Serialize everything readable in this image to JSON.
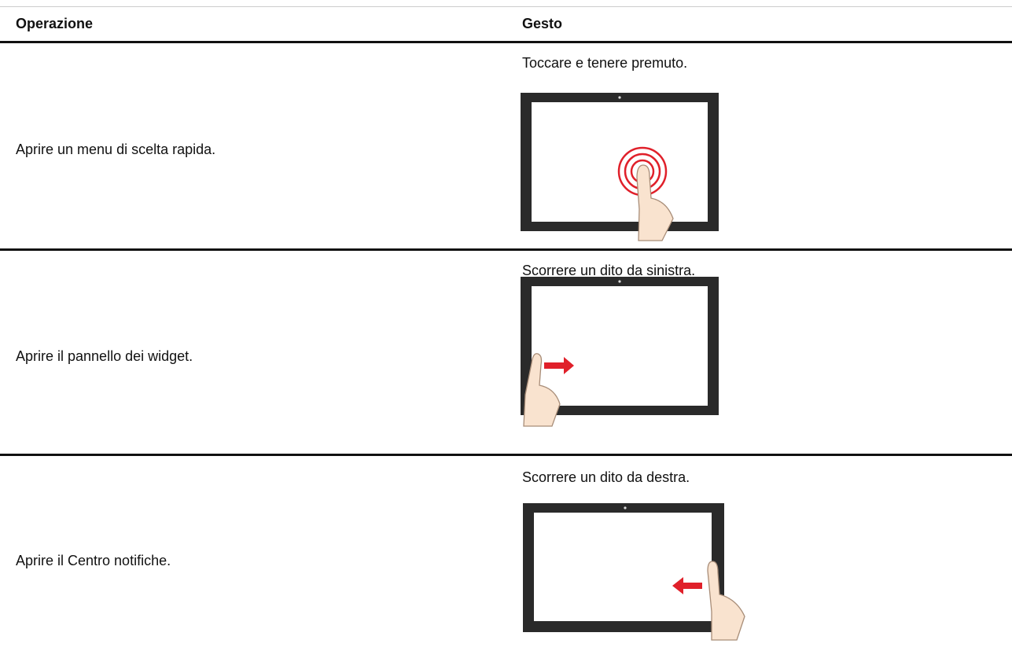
{
  "table": {
    "header": [
      "Operazione",
      "Gesto"
    ],
    "rows": [
      [
        "Aprire un menu di scelta rapida.",
        "Toccare e tenere premuto."
      ],
      [
        "Aprire il pannello dei widget.",
        "Scorrere un dito da sinistra."
      ],
      [
        "Aprire il Centro notifiche.",
        "Scorrere un dito da destra."
      ]
    ]
  }
}
